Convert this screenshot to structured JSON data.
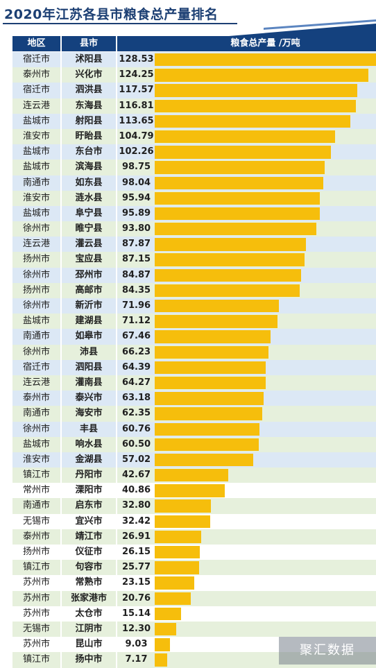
{
  "title": "2020年江苏各县市粮食总产量排名",
  "header": {
    "region": "地区",
    "county": "县市",
    "value": "粮食总产量 /万吨"
  },
  "colors": {
    "header_bg": "#14417e",
    "bar": "#f6be0c",
    "row_blue": "#dce8f5",
    "row_green": "#e6f0dc",
    "row_white": "#ffffff"
  },
  "watermark": "聚汇数据",
  "chart_data": {
    "type": "bar",
    "orientation": "horizontal",
    "title": "2020年江苏各县市粮食总产量排名",
    "value_label": "粮食总产量 /万吨",
    "xlim": [
      0,
      128.53
    ],
    "rows": [
      {
        "region": "宿迁市",
        "county": "沭阳县",
        "value": 128.53
      },
      {
        "region": "泰州市",
        "county": "兴化市",
        "value": 124.25
      },
      {
        "region": "宿迁市",
        "county": "泗洪县",
        "value": 117.57
      },
      {
        "region": "连云港",
        "county": "东海县",
        "value": 116.81
      },
      {
        "region": "盐城市",
        "county": "射阳县",
        "value": 113.65
      },
      {
        "region": "淮安市",
        "county": "盱眙县",
        "value": 104.79
      },
      {
        "region": "盐城市",
        "county": "东台市",
        "value": 102.26
      },
      {
        "region": "盐城市",
        "county": "滨海县",
        "value": 98.75
      },
      {
        "region": "南通市",
        "county": "如东县",
        "value": 98.04
      },
      {
        "region": "淮安市",
        "county": "涟水县",
        "value": 95.94
      },
      {
        "region": "盐城市",
        "county": "阜宁县",
        "value": 95.89
      },
      {
        "region": "徐州市",
        "county": "睢宁县",
        "value": 93.8
      },
      {
        "region": "连云港",
        "county": "灌云县",
        "value": 87.87
      },
      {
        "region": "扬州市",
        "county": "宝应县",
        "value": 87.15
      },
      {
        "region": "徐州市",
        "county": "邳州市",
        "value": 84.87
      },
      {
        "region": "扬州市",
        "county": "高邮市",
        "value": 84.35
      },
      {
        "region": "徐州市",
        "county": "新沂市",
        "value": 71.96
      },
      {
        "region": "盐城市",
        "county": "建湖县",
        "value": 71.12
      },
      {
        "region": "南通市",
        "county": "如皋市",
        "value": 67.46
      },
      {
        "region": "徐州市",
        "county": "沛县",
        "value": 66.23
      },
      {
        "region": "宿迁市",
        "county": "泗阳县",
        "value": 64.39
      },
      {
        "region": "连云港",
        "county": "灌南县",
        "value": 64.27
      },
      {
        "region": "泰州市",
        "county": "泰兴市",
        "value": 63.18
      },
      {
        "region": "南通市",
        "county": "海安市",
        "value": 62.35
      },
      {
        "region": "徐州市",
        "county": "丰县",
        "value": 60.76
      },
      {
        "region": "盐城市",
        "county": "响水县",
        "value": 60.5
      },
      {
        "region": "淮安市",
        "county": "金湖县",
        "value": 57.02
      },
      {
        "region": "镇江市",
        "county": "丹阳市",
        "value": 42.67
      },
      {
        "region": "常州市",
        "county": "溧阳市",
        "value": 40.86
      },
      {
        "region": "南通市",
        "county": "启东市",
        "value": 32.8
      },
      {
        "region": "无锡市",
        "county": "宜兴市",
        "value": 32.42
      },
      {
        "region": "泰州市",
        "county": "靖江市",
        "value": 26.91
      },
      {
        "region": "扬州市",
        "county": "仪征市",
        "value": 26.15
      },
      {
        "region": "镇江市",
        "county": "句容市",
        "value": 25.77
      },
      {
        "region": "苏州市",
        "county": "常熟市",
        "value": 23.15
      },
      {
        "region": "苏州市",
        "county": "张家港市",
        "value": 20.76
      },
      {
        "region": "苏州市",
        "county": "太仓市",
        "value": 15.14
      },
      {
        "region": "无锡市",
        "county": "江阴市",
        "value": 12.3
      },
      {
        "region": "苏州市",
        "county": "昆山市",
        "value": 9.03
      },
      {
        "region": "镇江市",
        "county": "扬中市",
        "value": 7.17
      }
    ]
  }
}
